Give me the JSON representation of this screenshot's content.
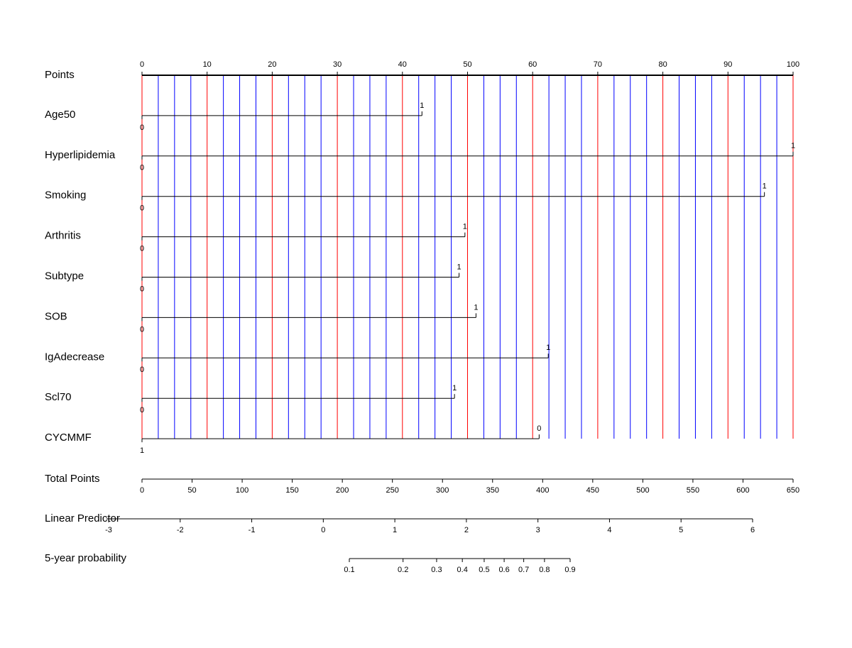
{
  "chart_data": {
    "type": "nomogram",
    "points": {
      "label": "Points",
      "xlim": [
        0,
        100
      ],
      "xticks": [
        0,
        10,
        20,
        30,
        40,
        50,
        60,
        70,
        80,
        90,
        100
      ],
      "minor_gridlines": [
        2.5,
        5,
        7.5,
        12.5,
        15,
        17.5,
        22.5,
        25,
        27.5,
        32.5,
        35,
        37.5,
        42.5,
        45,
        47.5,
        52.5,
        55,
        57.5,
        62.5,
        65,
        67.5,
        72.5,
        75,
        77.5,
        82.5,
        85,
        87.5,
        92.5,
        95,
        97.5
      ],
      "major_grid_color": "#ff0000",
      "minor_grid_color": "#0000ff"
    },
    "variables": [
      {
        "name": "Age50",
        "levels": [
          {
            "label": "0",
            "value": 0
          },
          {
            "label": "1",
            "value": 43.0
          }
        ]
      },
      {
        "name": "Hyperlipidemia",
        "levels": [
          {
            "label": "0",
            "value": 0
          },
          {
            "label": "1",
            "value": 100
          }
        ]
      },
      {
        "name": "Smoking",
        "levels": [
          {
            "label": "0",
            "value": 0
          },
          {
            "label": "1",
            "value": 95.6
          }
        ]
      },
      {
        "name": "Arthritis",
        "levels": [
          {
            "label": "0",
            "value": 0
          },
          {
            "label": "1",
            "value": 49.6
          }
        ]
      },
      {
        "name": "Subtype",
        "levels": [
          {
            "label": "0",
            "value": 0
          },
          {
            "label": "1",
            "value": 48.7
          }
        ]
      },
      {
        "name": "SOB",
        "levels": [
          {
            "label": "0",
            "value": 0
          },
          {
            "label": "1",
            "value": 51.3
          }
        ]
      },
      {
        "name": "IgAdecrease",
        "levels": [
          {
            "label": "0",
            "value": 0
          },
          {
            "label": "1",
            "value": 62.4
          }
        ]
      },
      {
        "name": "Scl70",
        "levels": [
          {
            "label": "0",
            "value": 0
          },
          {
            "label": "1",
            "value": 48.0
          }
        ]
      },
      {
        "name": "CYCMMF",
        "levels": [
          {
            "label": "1",
            "value": 0
          },
          {
            "label": "0",
            "value": 61.0
          }
        ]
      }
    ],
    "total_points": {
      "label": "Total Points",
      "xlim": [
        0,
        650
      ],
      "xticks": [
        0,
        50,
        100,
        150,
        200,
        250,
        300,
        350,
        400,
        450,
        500,
        550,
        600,
        650
      ]
    },
    "linear_predictor": {
      "label": "Linear Predictor",
      "xlim": [
        -3,
        6
      ],
      "xticks": [
        -3,
        -2,
        -1,
        0,
        1,
        2,
        3,
        4,
        5,
        6
      ]
    },
    "probability": {
      "label": "5-year probability",
      "scale": "cloglog",
      "xlim": [
        0.1,
        0.9
      ],
      "xticks": [
        0.1,
        0.2,
        0.3,
        0.4,
        0.5,
        0.6,
        0.7,
        0.8,
        0.9
      ]
    }
  }
}
